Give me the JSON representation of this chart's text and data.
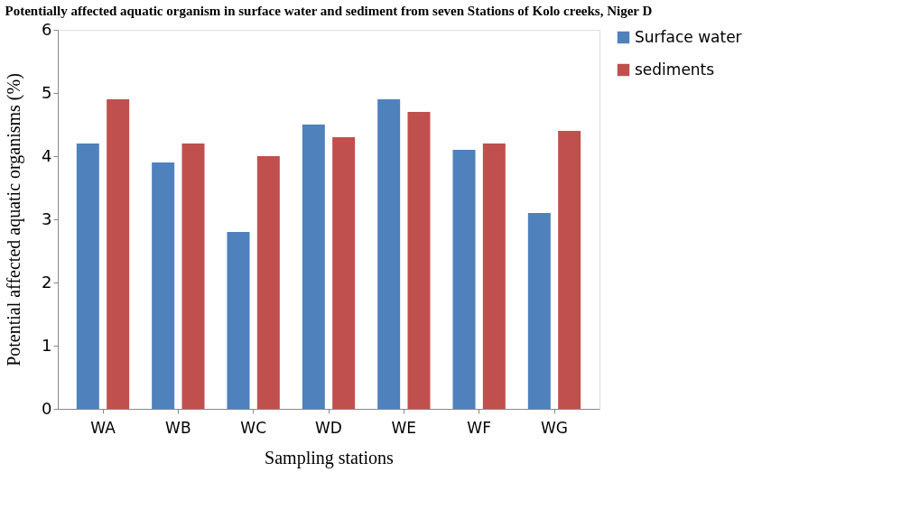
{
  "chart_data": {
    "type": "bar",
    "title": "Potentially affected aquatic organism in surface water and sediment from seven  Stations of Kolo  creeks, Niger D",
    "xlabel": "Sampling  stations",
    "ylabel": "Potential  affected  aquatic organisms  (%)",
    "categories": [
      "WA",
      "WB",
      "WC",
      "WD",
      "WE",
      "WF",
      "WG"
    ],
    "series": [
      {
        "name": "Surface water",
        "color": "#4f81bd",
        "values": [
          4.2,
          3.9,
          2.8,
          4.5,
          4.9,
          4.1,
          3.1
        ]
      },
      {
        "name": "sediments",
        "color": "#c0504d",
        "values": [
          4.9,
          4.2,
          4.0,
          4.3,
          4.7,
          4.2,
          4.4
        ]
      }
    ],
    "ylim": [
      0,
      6
    ],
    "yticks": [
      0,
      1,
      2,
      3,
      4,
      5,
      6
    ],
    "grid": false,
    "legend": "right"
  }
}
